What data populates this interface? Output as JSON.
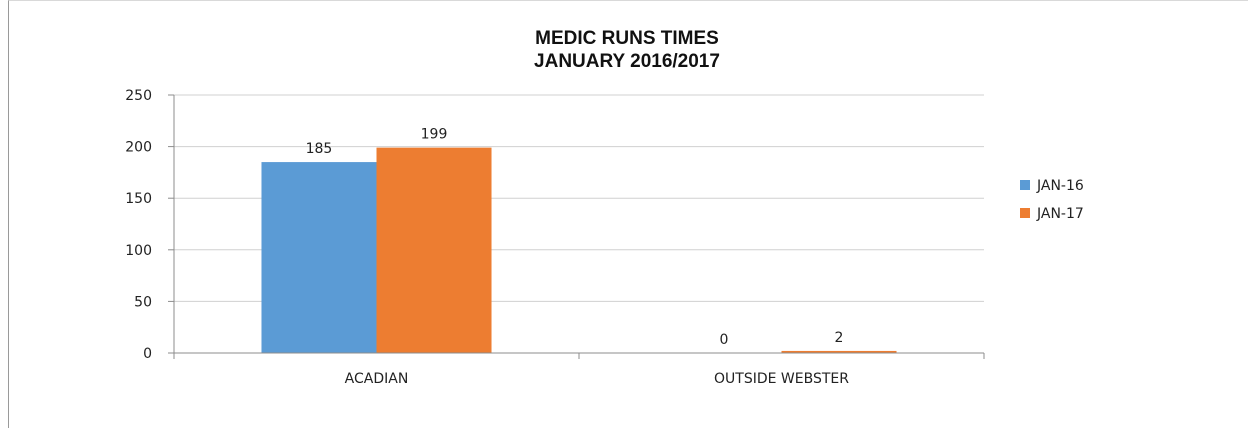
{
  "chart_data": {
    "type": "bar",
    "title": "MEDIC RUNS TIMES",
    "subtitle": "JANUARY 2016/2017",
    "xlabel": "",
    "ylabel": "",
    "categories": [
      "ACADIAN",
      "OUTSIDE WEBSTER"
    ],
    "series": [
      {
        "name": "JAN-16",
        "values": [
          185,
          0
        ],
        "color": "#5b9bd5"
      },
      {
        "name": "JAN-17",
        "values": [
          199,
          2
        ],
        "color": "#ed7d31"
      }
    ],
    "ylim": [
      0,
      250
    ],
    "yticks": [
      0,
      50,
      100,
      150,
      200,
      250
    ],
    "grid": true,
    "legend": "right",
    "data_labels": true
  }
}
